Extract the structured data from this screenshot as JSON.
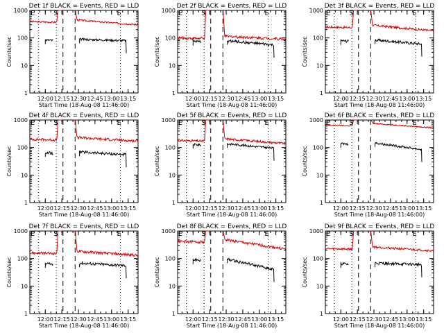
{
  "chart_data": [
    {
      "type": "line",
      "title": "Det 1f BLACK = Events, RED = LLD",
      "xlabel": "Start Time (18-Aug-08 11:46:00)",
      "ylabel": "Counts/sec",
      "ylog": true,
      "ylim": [
        1,
        1000
      ],
      "x_ticks": [
        "12:00",
        "12:15",
        "12:30",
        "12:45",
        "13:00",
        "13:15"
      ],
      "y_ticks": [
        "1",
        "10",
        "100",
        "1000"
      ],
      "markers": [
        "S",
        "E"
      ],
      "lld_level": 390,
      "lld_end": 300,
      "lld_noise": 0.03,
      "events_level": 85,
      "events_end": 80,
      "events_noise": 0.04,
      "series": [
        {
          "color": "#000000"
        },
        {
          "color": "#d40000"
        }
      ]
    },
    {
      "type": "line",
      "title": "Det 2f BLACK = Events, RED = LLD",
      "xlabel": "Start Time (18-Aug-08 11:46:00)",
      "ylabel": "Counts/sec",
      "ylog": true,
      "ylim": [
        1,
        1000
      ],
      "x_ticks": [
        "12:00",
        "12:15",
        "12:30",
        "12:45",
        "13:00",
        "13:15"
      ],
      "y_ticks": [
        "1",
        "10",
        "100",
        "1000"
      ],
      "markers": [
        "S",
        "E"
      ],
      "lld_level": 100,
      "lld_end": 90,
      "lld_noise": 0.05,
      "events_level": 75,
      "events_end": 55,
      "events_noise": 0.05,
      "series": [
        {
          "color": "#000000"
        },
        {
          "color": "#d40000"
        }
      ]
    },
    {
      "type": "line",
      "title": "Det 3f BLACK = Events, RED = LLD",
      "xlabel": "Start Time (18-Aug-08 11:46:00)",
      "ylabel": "Counts/sec",
      "ylog": true,
      "ylim": [
        1,
        1000
      ],
      "x_ticks": [
        "12:00",
        "12:15",
        "12:30",
        "12:45",
        "13:00",
        "13:15"
      ],
      "y_ticks": [
        "1",
        "10",
        "100",
        "1000"
      ],
      "markers": [
        "S",
        "E"
      ],
      "lld_level": 250,
      "lld_end": 180,
      "lld_noise": 0.04,
      "events_level": 80,
      "events_end": 60,
      "events_noise": 0.05,
      "series": [
        {
          "color": "#000000"
        },
        {
          "color": "#d40000"
        }
      ]
    },
    {
      "type": "line",
      "title": "Det 4f BLACK = Events, RED = LLD",
      "xlabel": "Start Time (18-Aug-08 11:46:00)",
      "ylabel": "Counts/sec",
      "ylog": true,
      "ylim": [
        1,
        1000
      ],
      "x_ticks": [
        "12:00",
        "12:15",
        "12:30",
        "12:45",
        "13:00",
        "13:15"
      ],
      "y_ticks": [
        "1",
        "10",
        "100",
        "1000"
      ],
      "markers": [
        "S",
        "E"
      ],
      "lld_level": 200,
      "lld_end": 170,
      "lld_noise": 0.05,
      "events_level": 65,
      "events_end": 55,
      "events_noise": 0.05,
      "series": [
        {
          "color": "#000000"
        },
        {
          "color": "#d40000"
        }
      ]
    },
    {
      "type": "line",
      "title": "Det 5f BLACK = Events, RED = LLD",
      "xlabel": "Start Time (18-Aug-08 11:46:00)",
      "ylabel": "Counts/sec",
      "ylog": true,
      "ylim": [
        1,
        1000
      ],
      "x_ticks": [
        "12:00",
        "12:15",
        "12:30",
        "12:45",
        "13:00",
        "13:15"
      ],
      "y_ticks": [
        "1",
        "10",
        "100",
        "1000"
      ],
      "markers": [
        "S",
        "E"
      ],
      "lld_level": 180,
      "lld_end": 140,
      "lld_noise": 0.04,
      "events_level": 130,
      "events_end": 95,
      "events_noise": 0.04,
      "series": [
        {
          "color": "#000000"
        },
        {
          "color": "#d40000"
        }
      ]
    },
    {
      "type": "line",
      "title": "Det 6f BLACK = Events, RED = LLD",
      "xlabel": "Start Time (18-Aug-08 11:46:00)",
      "ylabel": "Counts/sec",
      "ylog": true,
      "ylim": [
        1,
        1000
      ],
      "x_ticks": [
        "12:00",
        "12:15",
        "12:30",
        "12:45",
        "13:00",
        "13:15"
      ],
      "y_ticks": [
        "1",
        "10",
        "100",
        "1000"
      ],
      "markers": [
        "S",
        "E"
      ],
      "lld_level": 650,
      "lld_end": 520,
      "lld_noise": 0.02,
      "events_level": 140,
      "events_end": 85,
      "events_noise": 0.04,
      "series": [
        {
          "color": "#000000"
        },
        {
          "color": "#d40000"
        }
      ]
    },
    {
      "type": "line",
      "title": "Det 7f BLACK = Events, RED = LLD",
      "xlabel": "Start Time (18-Aug-08 11:46:00)",
      "ylabel": "Counts/sec",
      "ylog": true,
      "ylim": [
        1,
        1000
      ],
      "x_ticks": [
        "12:00",
        "12:15",
        "12:30",
        "12:45",
        "13:00",
        "13:15"
      ],
      "y_ticks": [
        "1",
        "10",
        "100",
        "1000"
      ],
      "markers": [
        "S",
        "E"
      ],
      "lld_level": 160,
      "lld_end": 130,
      "lld_noise": 0.05,
      "events_level": 65,
      "events_end": 55,
      "events_noise": 0.05,
      "series": [
        {
          "color": "#000000"
        },
        {
          "color": "#d40000"
        }
      ]
    },
    {
      "type": "line",
      "title": "Det 8f BLACK = Events, RED = LLD",
      "xlabel": "Start Time (18-Aug-08 11:46:00)",
      "ylabel": "Counts/sec",
      "ylog": true,
      "ylim": [
        1,
        1000
      ],
      "x_ticks": [
        "12:00",
        "12:15",
        "12:30",
        "12:45",
        "13:00",
        "13:15"
      ],
      "y_ticks": [
        "1",
        "10",
        "100",
        "1000"
      ],
      "markers": [
        "S",
        "E"
      ],
      "lld_level": 420,
      "lld_end": 220,
      "lld_noise": 0.05,
      "events_level": 90,
      "events_end": 40,
      "events_noise": 0.05,
      "series": [
        {
          "color": "#000000"
        },
        {
          "color": "#d40000"
        }
      ]
    },
    {
      "type": "line",
      "title": "Det 9f BLACK = Events, RED = LLD",
      "xlabel": "Start Time (18-Aug-08 11:46:00)",
      "ylabel": "Counts/sec",
      "ylog": true,
      "ylim": [
        1,
        1000
      ],
      "x_ticks": [
        "12:00",
        "12:15",
        "12:30",
        "12:45",
        "13:00",
        "13:15"
      ],
      "y_ticks": [
        "1",
        "10",
        "100",
        "1000"
      ],
      "markers": [
        "S",
        "E"
      ],
      "lld_level": 230,
      "lld_end": 190,
      "lld_noise": 0.04,
      "events_level": 65,
      "events_end": 60,
      "events_noise": 0.05,
      "series": [
        {
          "color": "#000000"
        },
        {
          "color": "#d40000"
        }
      ]
    }
  ]
}
